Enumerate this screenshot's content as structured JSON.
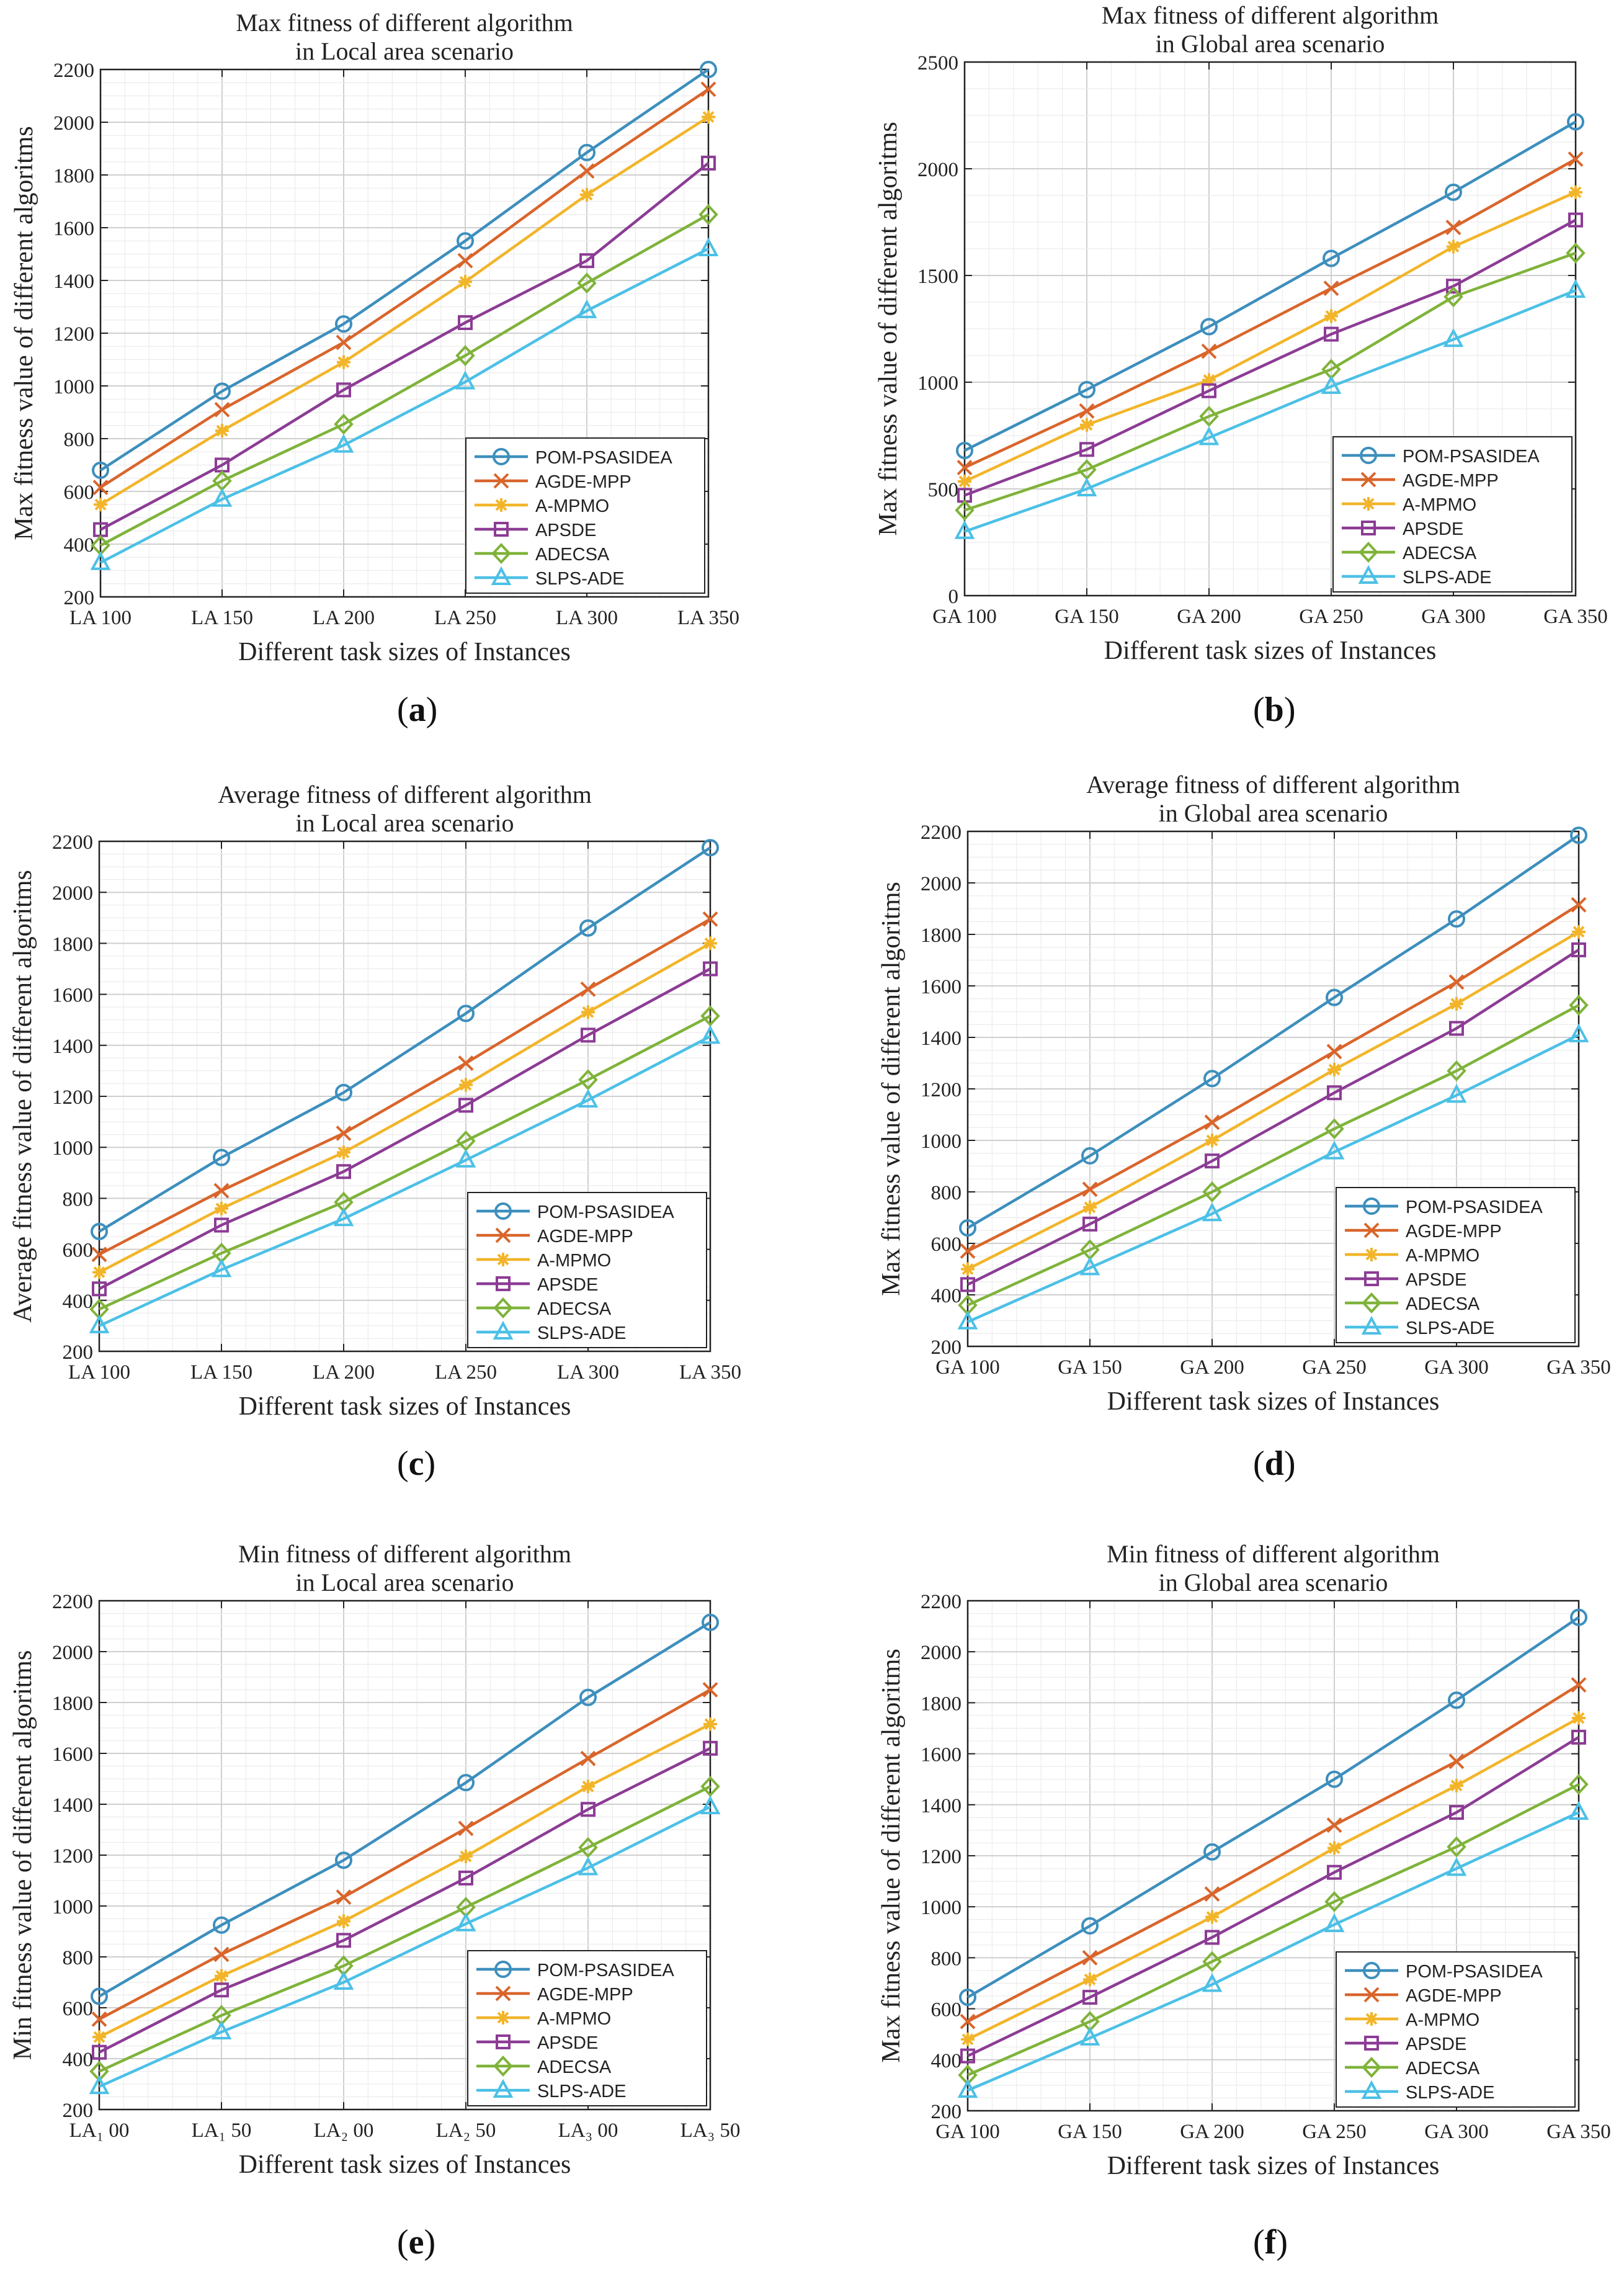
{
  "figure": {
    "panels": [
      {
        "letter": "a"
      },
      {
        "letter": "b"
      },
      {
        "letter": "c"
      },
      {
        "letter": "d"
      },
      {
        "letter": "e"
      },
      {
        "letter": "f"
      }
    ]
  },
  "series_colors": {
    "POM-PSASIDEA": "#3d8fbd",
    "AGDE-MPP": "#d9652b",
    "A-MPMO": "#f2b52a",
    "APSDE": "#8c3c95",
    "ADECSA": "#7fb33a",
    "SLPS-ADE": "#4cc0e6"
  },
  "series_markers": {
    "POM-PSASIDEA": "circle",
    "AGDE-MPP": "x",
    "A-MPMO": "asterisk",
    "APSDE": "square",
    "ADECSA": "diamond",
    "SLPS-ADE": "triangle"
  },
  "chart_data": [
    {
      "type": "line",
      "title": "Max fitness of different algorithm",
      "subtitle": "in Local area scenario",
      "xlabel": "Different task sizes of Instances",
      "ylabel": "Max fitness value of different algoritms",
      "categories": [
        "LA 100",
        "LA 150",
        "LA 200",
        "LA 250",
        "LA 300",
        "LA 350"
      ],
      "ylim": [
        200,
        2200
      ],
      "yticks": [
        200,
        400,
        600,
        800,
        1000,
        1200,
        1400,
        1600,
        1800,
        2000,
        2200
      ],
      "grid": true,
      "legend": "bottom-right",
      "series": [
        {
          "name": "POM-PSASIDEA",
          "values": [
            680,
            980,
            1235,
            1550,
            1885,
            2200
          ]
        },
        {
          "name": "AGDE-MPP",
          "values": [
            615,
            910,
            1165,
            1475,
            1815,
            2125
          ]
        },
        {
          "name": "A-MPMO",
          "values": [
            550,
            830,
            1090,
            1395,
            1725,
            2020
          ]
        },
        {
          "name": "APSDE",
          "values": [
            455,
            700,
            985,
            1240,
            1475,
            1845
          ]
        },
        {
          "name": "ADECSA",
          "values": [
            395,
            640,
            855,
            1115,
            1390,
            1650
          ]
        },
        {
          "name": "SLPS-ADE",
          "values": [
            330,
            570,
            775,
            1015,
            1285,
            1520
          ]
        }
      ]
    },
    {
      "type": "line",
      "title": "Max fitness of different algorithm",
      "subtitle": "in Global area scenario",
      "xlabel": "Different task sizes of Instances",
      "ylabel": "Max fitness value of different algoritms",
      "categories": [
        "GA 100",
        "GA 150",
        "GA 200",
        "GA 250",
        "GA 300",
        "GA 350"
      ],
      "ylim": [
        0,
        2500
      ],
      "yticks": [
        0,
        500,
        1000,
        1500,
        2000,
        2500
      ],
      "grid": true,
      "legend": "bottom-right",
      "series": [
        {
          "name": "POM-PSASIDEA",
          "values": [
            680,
            965,
            1260,
            1580,
            1890,
            2220
          ]
        },
        {
          "name": "AGDE-MPP",
          "values": [
            600,
            865,
            1145,
            1440,
            1725,
            2045
          ]
        },
        {
          "name": "A-MPMO",
          "values": [
            535,
            800,
            1010,
            1310,
            1635,
            1890
          ]
        },
        {
          "name": "APSDE",
          "values": [
            470,
            685,
            960,
            1225,
            1450,
            1760
          ]
        },
        {
          "name": "ADECSA",
          "values": [
            400,
            590,
            840,
            1060,
            1400,
            1605
          ]
        },
        {
          "name": "SLPS-ADE",
          "values": [
            300,
            500,
            740,
            980,
            1200,
            1430
          ]
        }
      ]
    },
    {
      "type": "line",
      "title": "Average fitness of different algorithm",
      "subtitle": "in Local area scenario",
      "xlabel": "Different task sizes of Instances",
      "ylabel": "Average fitness value of different algoritms",
      "categories": [
        "LA 100",
        "LA 150",
        "LA 200",
        "LA 250",
        "LA 300",
        "LA 350"
      ],
      "ylim": [
        200,
        2200
      ],
      "yticks": [
        200,
        400,
        600,
        800,
        1000,
        1200,
        1400,
        1600,
        1800,
        2000,
        2200
      ],
      "grid": true,
      "legend": "bottom-right",
      "series": [
        {
          "name": "POM-PSASIDEA",
          "values": [
            670,
            960,
            1215,
            1525,
            1860,
            2175
          ]
        },
        {
          "name": "AGDE-MPP",
          "values": [
            580,
            830,
            1055,
            1330,
            1620,
            1895
          ]
        },
        {
          "name": "A-MPMO",
          "values": [
            510,
            760,
            980,
            1245,
            1530,
            1800
          ]
        },
        {
          "name": "APSDE",
          "values": [
            445,
            695,
            905,
            1165,
            1440,
            1700
          ]
        },
        {
          "name": "ADECSA",
          "values": [
            365,
            585,
            785,
            1025,
            1265,
            1515
          ]
        },
        {
          "name": "SLPS-ADE",
          "values": [
            300,
            520,
            720,
            950,
            1185,
            1435
          ]
        }
      ]
    },
    {
      "type": "line",
      "title": "Average fitness of different algorithm",
      "subtitle": "in Global area scenario",
      "xlabel": "Different task sizes of Instances",
      "ylabel": "Max fitness value of different algoritms",
      "categories": [
        "GA 100",
        "GA 150",
        "GA 200",
        "GA 250",
        "GA 300",
        "GA 350"
      ],
      "ylim": [
        200,
        2200
      ],
      "yticks": [
        200,
        400,
        600,
        800,
        1000,
        1200,
        1400,
        1600,
        1800,
        2000,
        2200
      ],
      "grid": true,
      "legend": "bottom-right",
      "series": [
        {
          "name": "POM-PSASIDEA",
          "values": [
            660,
            940,
            1240,
            1555,
            1860,
            2185
          ]
        },
        {
          "name": "AGDE-MPP",
          "values": [
            570,
            810,
            1070,
            1345,
            1615,
            1915
          ]
        },
        {
          "name": "A-MPMO",
          "values": [
            500,
            740,
            1000,
            1275,
            1530,
            1810
          ]
        },
        {
          "name": "APSDE",
          "values": [
            440,
            675,
            920,
            1185,
            1435,
            1740
          ]
        },
        {
          "name": "ADECSA",
          "values": [
            360,
            575,
            800,
            1045,
            1270,
            1525
          ]
        },
        {
          "name": "SLPS-ADE",
          "values": [
            295,
            505,
            715,
            955,
            1175,
            1410
          ]
        }
      ]
    },
    {
      "type": "line",
      "title": "Min fitness of different algorithm",
      "subtitle": "in Local area scenario",
      "xlabel": "Different task sizes of Instances",
      "ylabel": "Min fitness value of different algoritms",
      "categories": [
        "LA₁ 00",
        "LA₁ 50",
        "LA₂ 00",
        "LA₂ 50",
        "LA₃ 00",
        "LA₃ 50"
      ],
      "ylim": [
        200,
        2200
      ],
      "yticks": [
        200,
        400,
        600,
        800,
        1000,
        1200,
        1400,
        1600,
        1800,
        2000,
        2200
      ],
      "grid": true,
      "legend": "bottom-right",
      "series": [
        {
          "name": "POM-PSASIDEA",
          "values": [
            645,
            925,
            1180,
            1485,
            1820,
            2115
          ]
        },
        {
          "name": "AGDE-MPP",
          "values": [
            555,
            810,
            1035,
            1305,
            1580,
            1850
          ]
        },
        {
          "name": "A-MPMO",
          "values": [
            485,
            725,
            940,
            1195,
            1470,
            1715
          ]
        },
        {
          "name": "APSDE",
          "values": [
            425,
            670,
            865,
            1110,
            1380,
            1620
          ]
        },
        {
          "name": "ADECSA",
          "values": [
            350,
            570,
            765,
            995,
            1230,
            1470
          ]
        },
        {
          "name": "SLPS-ADE",
          "values": [
            290,
            505,
            700,
            930,
            1150,
            1390
          ]
        }
      ]
    },
    {
      "type": "line",
      "title": "Min fitness of different algorithm",
      "subtitle": "in Global area scenario",
      "xlabel": "Different task sizes of Instances",
      "ylabel": "Max fitness value of different algoritms",
      "categories": [
        "GA 100",
        "GA 150",
        "GA 200",
        "GA 250",
        "GA 300",
        "GA 350"
      ],
      "ylim": [
        200,
        2200
      ],
      "yticks": [
        200,
        400,
        600,
        800,
        1000,
        1200,
        1400,
        1600,
        1800,
        2000,
        2200
      ],
      "grid": true,
      "legend": "bottom-right",
      "series": [
        {
          "name": "POM-PSASIDEA",
          "values": [
            645,
            925,
            1215,
            1500,
            1810,
            2135
          ]
        },
        {
          "name": "AGDE-MPP",
          "values": [
            550,
            800,
            1050,
            1320,
            1570,
            1870
          ]
        },
        {
          "name": "A-MPMO",
          "values": [
            480,
            715,
            960,
            1230,
            1475,
            1740
          ]
        },
        {
          "name": "APSDE",
          "values": [
            415,
            645,
            880,
            1135,
            1370,
            1665
          ]
        },
        {
          "name": "ADECSA",
          "values": [
            340,
            550,
            785,
            1020,
            1235,
            1480
          ]
        },
        {
          "name": "SLPS-ADE",
          "values": [
            280,
            485,
            695,
            930,
            1150,
            1370
          ]
        }
      ]
    }
  ]
}
